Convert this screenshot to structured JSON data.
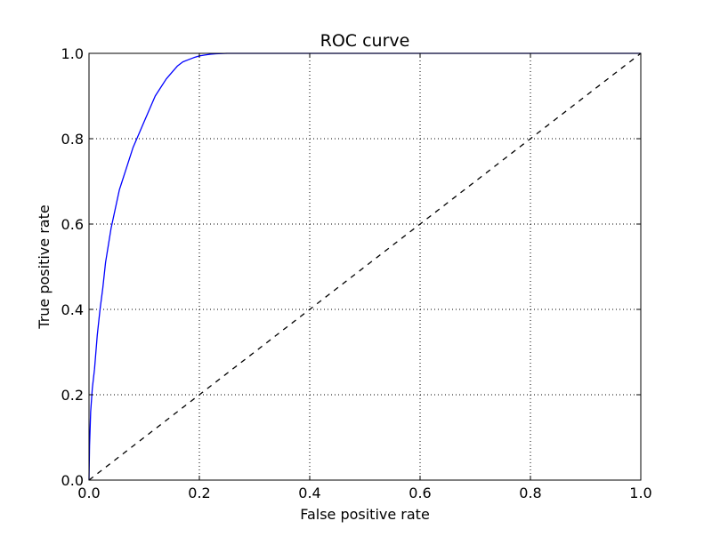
{
  "chart_data": {
    "type": "line",
    "title": "ROC curve",
    "xlabel": "False positive rate",
    "ylabel": "True positive rate",
    "xlim": [
      0.0,
      1.0
    ],
    "ylim": [
      0.0,
      1.0
    ],
    "grid": true,
    "grid_style": "dotted",
    "x_ticks": [
      0.0,
      0.2,
      0.4,
      0.6,
      0.8,
      1.0
    ],
    "y_ticks": [
      0.0,
      0.2,
      0.4,
      0.6,
      0.8,
      1.0
    ],
    "x_tick_labels": [
      "0.0",
      "0.2",
      "0.4",
      "0.6",
      "0.8",
      "1.0"
    ],
    "y_tick_labels": [
      "0.0",
      "0.2",
      "0.4",
      "0.6",
      "0.8",
      "1.0"
    ],
    "series": [
      {
        "color": "#0000ff",
        "style": "solid",
        "x": [
          0.0,
          0.001,
          0.003,
          0.006,
          0.01,
          0.015,
          0.02,
          0.025,
          0.03,
          0.035,
          0.04,
          0.045,
          0.05,
          0.055,
          0.06,
          0.065,
          0.07,
          0.08,
          0.09,
          0.1,
          0.11,
          0.12,
          0.13,
          0.14,
          0.15,
          0.16,
          0.17,
          0.18,
          0.19,
          0.2,
          0.21,
          0.22,
          0.23,
          0.25,
          0.3,
          0.4,
          0.5,
          0.6,
          0.7,
          0.8,
          0.9,
          1.0
        ],
        "y": [
          0.0,
          0.08,
          0.16,
          0.215,
          0.26,
          0.34,
          0.4,
          0.45,
          0.51,
          0.55,
          0.59,
          0.62,
          0.65,
          0.68,
          0.7,
          0.72,
          0.74,
          0.78,
          0.81,
          0.84,
          0.87,
          0.9,
          0.92,
          0.94,
          0.955,
          0.97,
          0.98,
          0.985,
          0.99,
          0.994,
          0.996,
          0.998,
          0.999,
          1.0,
          1.0,
          1.0,
          1.0,
          1.0,
          1.0,
          1.0,
          1.0,
          1.0
        ]
      },
      {
        "color": "#000000",
        "style": "dashed",
        "x": [
          0.0,
          1.0
        ],
        "y": [
          0.0,
          1.0
        ]
      }
    ]
  }
}
